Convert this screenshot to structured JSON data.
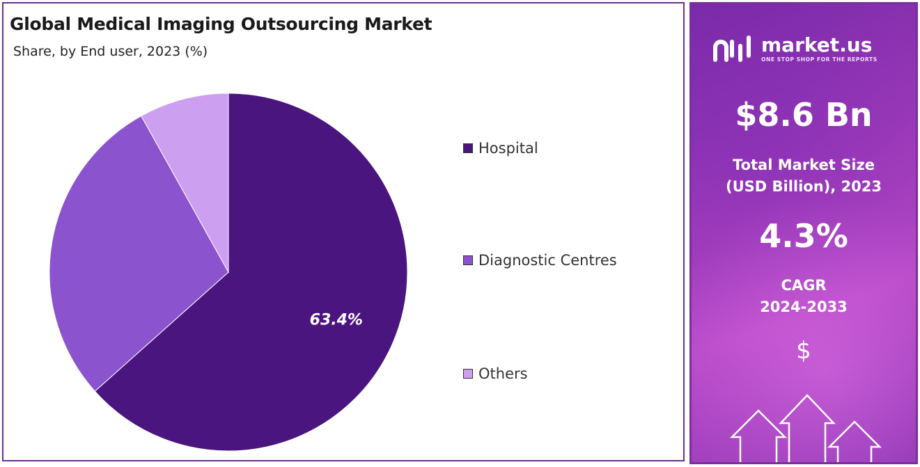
{
  "chart_data": {
    "type": "pie",
    "title": "Global Medical Imaging Outsourcing Market",
    "subtitle": "Share, by End user, 2023 (%)",
    "series": [
      {
        "name": "Hospital",
        "value": 63.4,
        "color": "#4b157f",
        "label": "63.4%"
      },
      {
        "name": "Diagnostic Centres",
        "value": 28.5,
        "color": "#8c53cf",
        "label": ""
      },
      {
        "name": "Others",
        "value": 8.1,
        "color": "#cc9ff0",
        "label": ""
      }
    ],
    "legend_position": "right"
  },
  "sidebar": {
    "brand_name": "market.us",
    "brand_tagline": "ONE STOP SHOP FOR THE REPORTS",
    "market_size_value": "$8.6 Bn",
    "market_size_label_line1": "Total Market Size",
    "market_size_label_line2": "(USD Billion), 2023",
    "cagr_value": "4.3%",
    "cagr_label_line1": "CAGR",
    "cagr_label_line2": "2024-2033",
    "dollar_symbol": "$",
    "icons": [
      "market-us-logo-icon",
      "dollar-icon",
      "up-arrows-icon"
    ]
  }
}
